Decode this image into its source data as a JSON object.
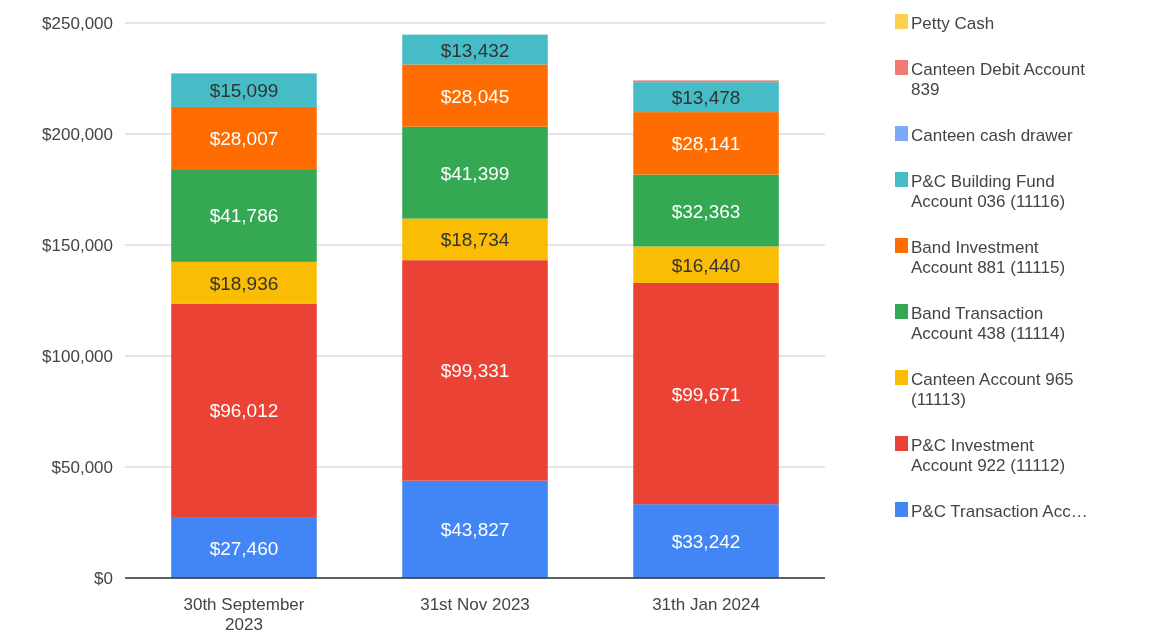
{
  "chart_data": {
    "type": "bar",
    "stacked": true,
    "categories": [
      "30th September 2023",
      "31st Nov 2023",
      "31th Jan 2024"
    ],
    "ylim": [
      0,
      250000
    ],
    "yticks": [
      {
        "value": 0,
        "label": "$0"
      },
      {
        "value": 50000,
        "label": "$50,000"
      },
      {
        "value": 100000,
        "label": "$100,000"
      },
      {
        "value": 150000,
        "label": "$150,000"
      },
      {
        "value": 200000,
        "label": "$200,000"
      },
      {
        "value": 250000,
        "label": "$250,000"
      }
    ],
    "grid": "y",
    "legend": "right",
    "series": [
      {
        "name": "P&C Transaction Acc…",
        "color": "#4285f4",
        "values": [
          27460,
          43827,
          33242
        ],
        "value_labels": [
          "$27,460",
          "$43,827",
          "$33,242"
        ]
      },
      {
        "name": "P&C Investment Account 922 (11112)",
        "color": "#ea4335",
        "values": [
          96012,
          99331,
          99671
        ],
        "value_labels": [
          "$96,012",
          "$99,331",
          "$99,671"
        ]
      },
      {
        "name": "Canteen Account 965 (11113)",
        "color": "#fbbc04",
        "values": [
          18936,
          18734,
          16440
        ],
        "value_labels": [
          "$18,936",
          "$18,734",
          "$16,440"
        ]
      },
      {
        "name": "Band Transaction Account 438 (11114)",
        "color": "#34a853",
        "values": [
          41786,
          41399,
          32363
        ],
        "value_labels": [
          "$41,786",
          "$41,399",
          "$32,363"
        ]
      },
      {
        "name": "Band Investment Account 881 (11115)",
        "color": "#ff6d01",
        "values": [
          28007,
          28045,
          28141
        ],
        "value_labels": [
          "$28,007",
          "$28,045",
          "$28,141"
        ]
      },
      {
        "name": "P&C Building Fund Account 036 (11116)",
        "color": "#46bdc6",
        "values": [
          15099,
          13432,
          13478
        ],
        "value_labels": [
          "$15,099",
          "$13,432",
          "$13,478"
        ]
      },
      {
        "name": "Canteen cash drawer",
        "color": "#7baaf7",
        "values": [
          null,
          null,
          null
        ]
      },
      {
        "name": "Canteen Debit Account 839",
        "color": "#f07b72",
        "values": [
          null,
          null,
          800
        ]
      },
      {
        "name": "Petty Cash",
        "color": "#fcd04f",
        "values": [
          null,
          null,
          null
        ]
      }
    ]
  }
}
